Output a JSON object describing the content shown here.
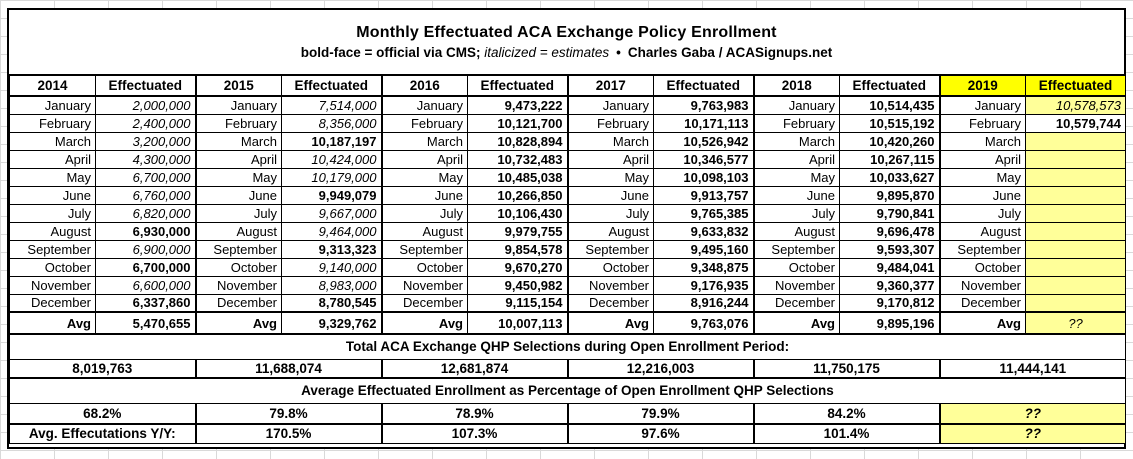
{
  "chart_data": {
    "type": "table",
    "title": "Monthly Effectuated ACA Exchange Policy Enrollment",
    "legend": {
      "bold_label": "bold-face = official via CMS;",
      "italic_label": "italicized = estimates",
      "separator": "•",
      "credit": "Charles Gaba / ACASignups.net"
    },
    "effectuated_header": "Effectuated",
    "avg_label": "Avg",
    "months": [
      "January",
      "February",
      "March",
      "April",
      "May",
      "June",
      "July",
      "August",
      "September",
      "October",
      "November",
      "December"
    ],
    "years": [
      {
        "year": "2014",
        "highlight": false,
        "values": [
          {
            "v": "2,000,000",
            "est": true
          },
          {
            "v": "2,400,000",
            "est": true
          },
          {
            "v": "3,200,000",
            "est": true
          },
          {
            "v": "4,300,000",
            "est": true
          },
          {
            "v": "6,700,000",
            "est": true
          },
          {
            "v": "6,760,000",
            "est": true
          },
          {
            "v": "6,820,000",
            "est": true
          },
          {
            "v": "6,930,000"
          },
          {
            "v": "6,900,000",
            "est": true
          },
          {
            "v": "6,700,000"
          },
          {
            "v": "6,600,000",
            "est": true
          },
          {
            "v": "6,337,860"
          }
        ],
        "avg": "5,470,655"
      },
      {
        "year": "2015",
        "highlight": false,
        "values": [
          {
            "v": "7,514,000",
            "est": true
          },
          {
            "v": "8,356,000",
            "est": true
          },
          {
            "v": "10,187,197"
          },
          {
            "v": "10,424,000",
            "est": true
          },
          {
            "v": "10,179,000",
            "est": true
          },
          {
            "v": "9,949,079"
          },
          {
            "v": "9,667,000",
            "est": true
          },
          {
            "v": "9,464,000",
            "est": true
          },
          {
            "v": "9,313,323"
          },
          {
            "v": "9,140,000",
            "est": true
          },
          {
            "v": "8,983,000",
            "est": true
          },
          {
            "v": "8,780,545"
          }
        ],
        "avg": "9,329,762"
      },
      {
        "year": "2016",
        "highlight": false,
        "values": [
          {
            "v": "9,473,222"
          },
          {
            "v": "10,121,700"
          },
          {
            "v": "10,828,894"
          },
          {
            "v": "10,732,483"
          },
          {
            "v": "10,485,038"
          },
          {
            "v": "10,266,850"
          },
          {
            "v": "10,106,430"
          },
          {
            "v": "9,979,755"
          },
          {
            "v": "9,854,578"
          },
          {
            "v": "9,670,270"
          },
          {
            "v": "9,450,982"
          },
          {
            "v": "9,115,154"
          }
        ],
        "avg": "10,007,113"
      },
      {
        "year": "2017",
        "highlight": false,
        "values": [
          {
            "v": "9,763,983"
          },
          {
            "v": "10,171,113"
          },
          {
            "v": "10,526,942"
          },
          {
            "v": "10,346,577"
          },
          {
            "v": "10,098,103"
          },
          {
            "v": "9,913,757"
          },
          {
            "v": "9,765,385"
          },
          {
            "v": "9,633,832"
          },
          {
            "v": "9,495,160"
          },
          {
            "v": "9,348,875"
          },
          {
            "v": "9,176,935"
          },
          {
            "v": "8,916,244"
          }
        ],
        "avg": "9,763,076"
      },
      {
        "year": "2018",
        "highlight": false,
        "values": [
          {
            "v": "10,514,435"
          },
          {
            "v": "10,515,192"
          },
          {
            "v": "10,420,260"
          },
          {
            "v": "10,267,115"
          },
          {
            "v": "10,033,627"
          },
          {
            "v": "9,895,870"
          },
          {
            "v": "9,790,841"
          },
          {
            "v": "9,696,478"
          },
          {
            "v": "9,593,307"
          },
          {
            "v": "9,484,041"
          },
          {
            "v": "9,360,377"
          },
          {
            "v": "9,170,812"
          }
        ],
        "avg": "9,895,196"
      },
      {
        "year": "2019",
        "highlight": true,
        "values": [
          {
            "v": "10,578,573",
            "est": true,
            "hl": true
          },
          {
            "v": "10,579,744"
          },
          {
            "v": "",
            "hl": true
          },
          {
            "v": "",
            "hl": true
          },
          {
            "v": "",
            "hl": true
          },
          {
            "v": "",
            "hl": true
          },
          {
            "v": "",
            "hl": true
          },
          {
            "v": "",
            "hl": true
          },
          {
            "v": "",
            "hl": true
          },
          {
            "v": "",
            "hl": true
          },
          {
            "v": "",
            "hl": true
          },
          {
            "v": "",
            "hl": true
          }
        ],
        "avg": "??",
        "avg_hl": true,
        "avg_est": true
      }
    ],
    "qhp_title": "Total ACA Exchange QHP Selections during Open Enrollment Period:",
    "qhp_totals": [
      "8,019,763",
      "11,688,074",
      "12,681,874",
      "12,216,003",
      "11,750,175",
      "11,444,141"
    ],
    "pct_title": "Average Effectuated Enrollment as Percentage of Open Enrollment QHP Selections",
    "pct_values": [
      {
        "v": "68.2%"
      },
      {
        "v": "79.8%"
      },
      {
        "v": "78.9%"
      },
      {
        "v": "79.9%"
      },
      {
        "v": "84.2%"
      },
      {
        "v": "??",
        "hl": true,
        "est": true
      }
    ],
    "yoy_label": "Avg. Effecutations Y/Y:",
    "yoy_values": [
      {
        "v": "170.5%"
      },
      {
        "v": "107.3%"
      },
      {
        "v": "97.6%"
      },
      {
        "v": "101.4%"
      },
      {
        "v": "??",
        "hl": true,
        "est": true
      }
    ],
    "colors": {
      "official_header_bg": "#FFFF00",
      "estimate_cell_bg": "#FFFF99",
      "grid_line": "#000000"
    }
  }
}
